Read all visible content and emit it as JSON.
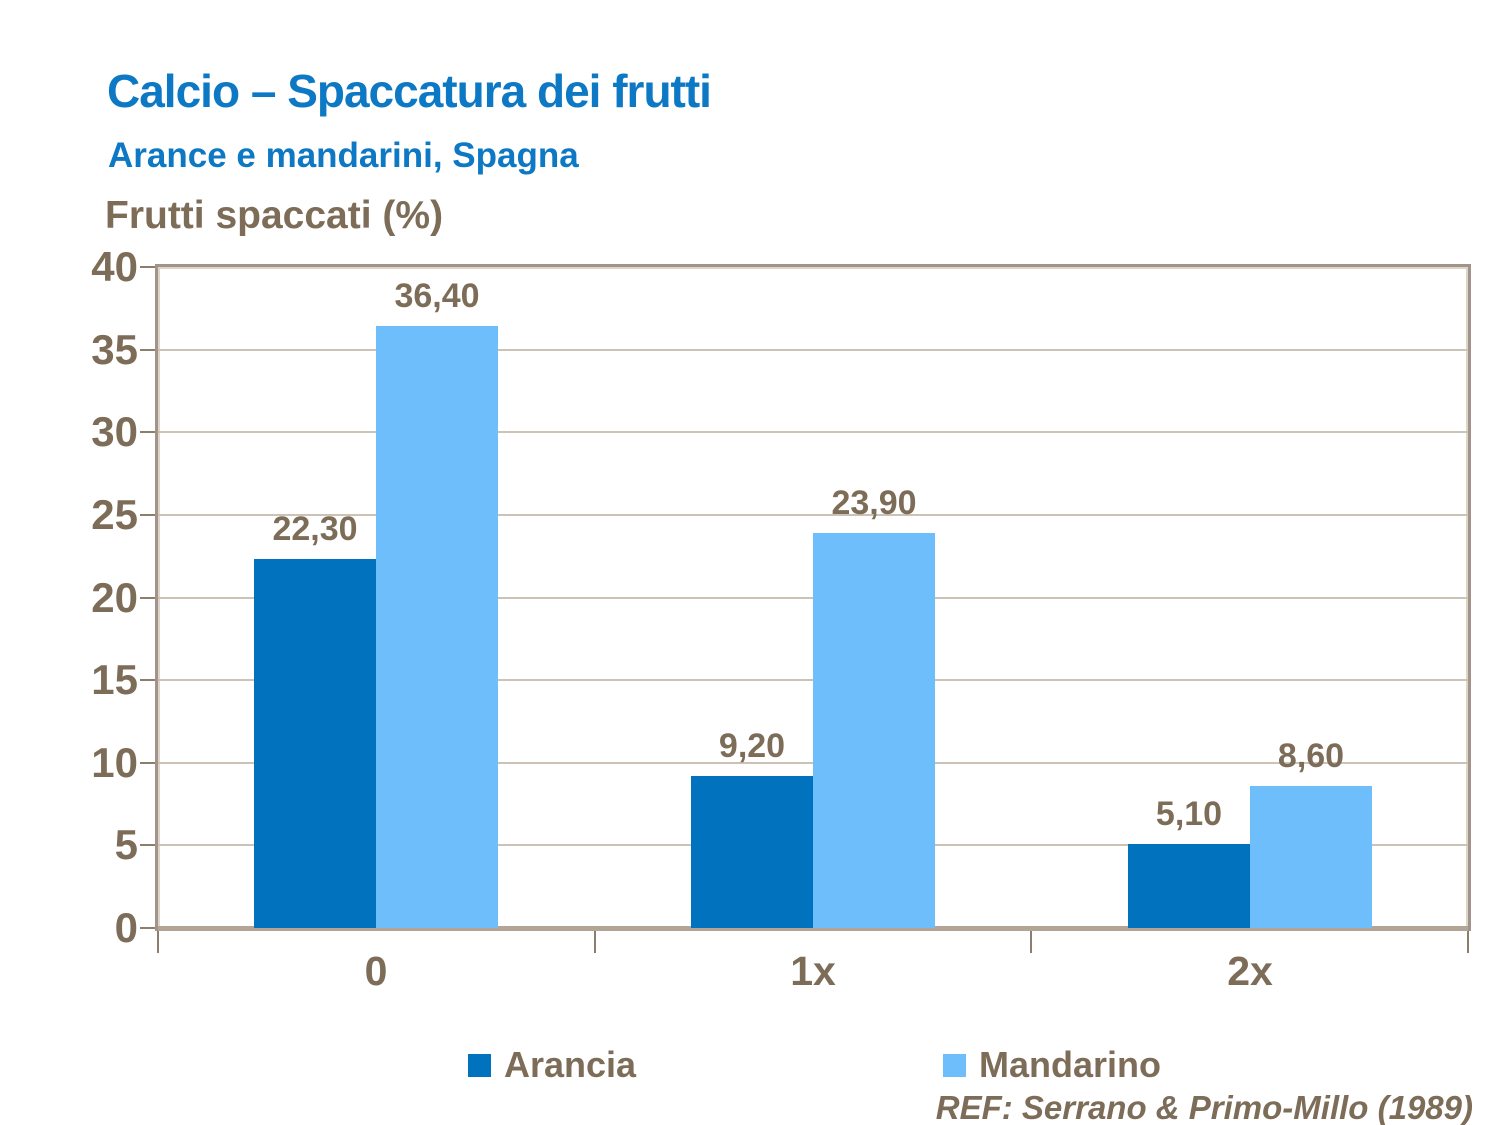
{
  "header": {
    "title": "Calcio – Spaccatura dei frutti",
    "subtitle": "Arance e mandarini, Spagna"
  },
  "chart_data": {
    "type": "bar",
    "title": "Frutti spaccati (%)",
    "categories": [
      "0",
      "1x",
      "2x"
    ],
    "series": [
      {
        "name": "Arancia",
        "color": "#0072be",
        "values": [
          22.3,
          9.2,
          5.1
        ],
        "value_labels": [
          "22,30",
          "9,20",
          "5,10"
        ]
      },
      {
        "name": "Mandarino",
        "color": "#6ebefb",
        "values": [
          36.4,
          23.9,
          8.6
        ],
        "value_labels": [
          "36,40",
          "23,90",
          "8,60"
        ]
      }
    ],
    "ylabel": "Frutti spaccati (%)",
    "xlabel": "",
    "ylim": [
      0,
      40
    ],
    "yticks": [
      0,
      5,
      10,
      15,
      20,
      25,
      30,
      35,
      40
    ],
    "grid": true,
    "legend_position": "bottom",
    "colors": {
      "title_blue": "#0d79c4",
      "axis_text": "#7d6d58",
      "plot_border": "#a1948a",
      "gridline": "#ccc2b5",
      "baseline": "#b2a596",
      "tick": "#8c7e6c"
    }
  },
  "footer": {
    "reference": "REF: Serrano & Primo-Millo (1989)"
  }
}
